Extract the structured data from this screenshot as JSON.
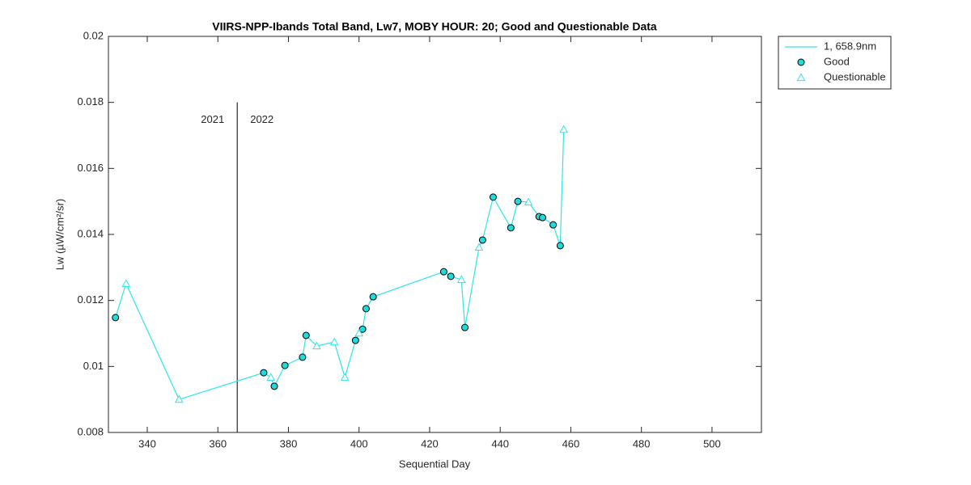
{
  "chart_data": {
    "type": "line",
    "title": "VIIRS-NPP-Ibands Total Band,  Lw7, MOBY HOUR: 20;  Good and Questionable Data",
    "x_label": "Sequential Day",
    "y_label": "Lw (µW/cm²/sr)",
    "xlim": [
      329,
      514
    ],
    "xticks": [
      340,
      360,
      380,
      400,
      420,
      440,
      460,
      480,
      500
    ],
    "ylim": [
      0.008,
      0.02
    ],
    "yticks": [
      0.008,
      0.01,
      0.012,
      0.014,
      0.016,
      0.018,
      0.02
    ],
    "legend": "outside-right-top",
    "divider_x": 365.5,
    "divider_top": 0.018,
    "annotations": [
      "2021",
      "2022"
    ],
    "series": [
      {
        "name": "1, 658.9nm",
        "color": "#2ee6e6",
        "marker": "none",
        "x": [
          331,
          334,
          349,
          373,
          375,
          376,
          379,
          384,
          385,
          388,
          393,
          396,
          399,
          400,
          401,
          402,
          404,
          424,
          426,
          429,
          430,
          434,
          435,
          438,
          443,
          445,
          448,
          451,
          452,
          455,
          457,
          458
        ],
        "values": [
          0.01148,
          0.01251,
          0.009,
          0.00981,
          0.00967,
          0.0094,
          0.01003,
          0.01028,
          0.01094,
          0.01062,
          0.01074,
          0.00967,
          0.01079,
          0.01101,
          0.01113,
          0.01175,
          0.01211,
          0.01287,
          0.01273,
          0.01263,
          0.01118,
          0.01361,
          0.01383,
          0.01513,
          0.0142,
          0.015,
          0.01498,
          0.01454,
          0.01451,
          0.01429,
          0.01366,
          0.01718
        ]
      },
      {
        "name": "Good",
        "color": "#1cdcdc",
        "marker": "circle",
        "x": [
          331,
          373,
          376,
          379,
          384,
          385,
          399,
          401,
          402,
          404,
          424,
          426,
          430,
          435,
          438,
          443,
          445,
          451,
          452,
          455,
          457
        ],
        "values": [
          0.01148,
          0.00981,
          0.0094,
          0.01003,
          0.01028,
          0.01094,
          0.01079,
          0.01113,
          0.01175,
          0.01211,
          0.01287,
          0.01273,
          0.01118,
          0.01383,
          0.01513,
          0.0142,
          0.015,
          0.01454,
          0.01451,
          0.01429,
          0.01366
        ]
      },
      {
        "name": "Questionable",
        "color": "#2ee6e6",
        "marker": "triangle",
        "x": [
          334,
          349,
          375,
          388,
          393,
          396,
          400,
          429,
          434,
          448,
          458
        ],
        "values": [
          0.01251,
          0.009,
          0.00967,
          0.01062,
          0.01074,
          0.00967,
          0.01101,
          0.01263,
          0.01361,
          0.01498,
          0.01718
        ]
      }
    ]
  }
}
